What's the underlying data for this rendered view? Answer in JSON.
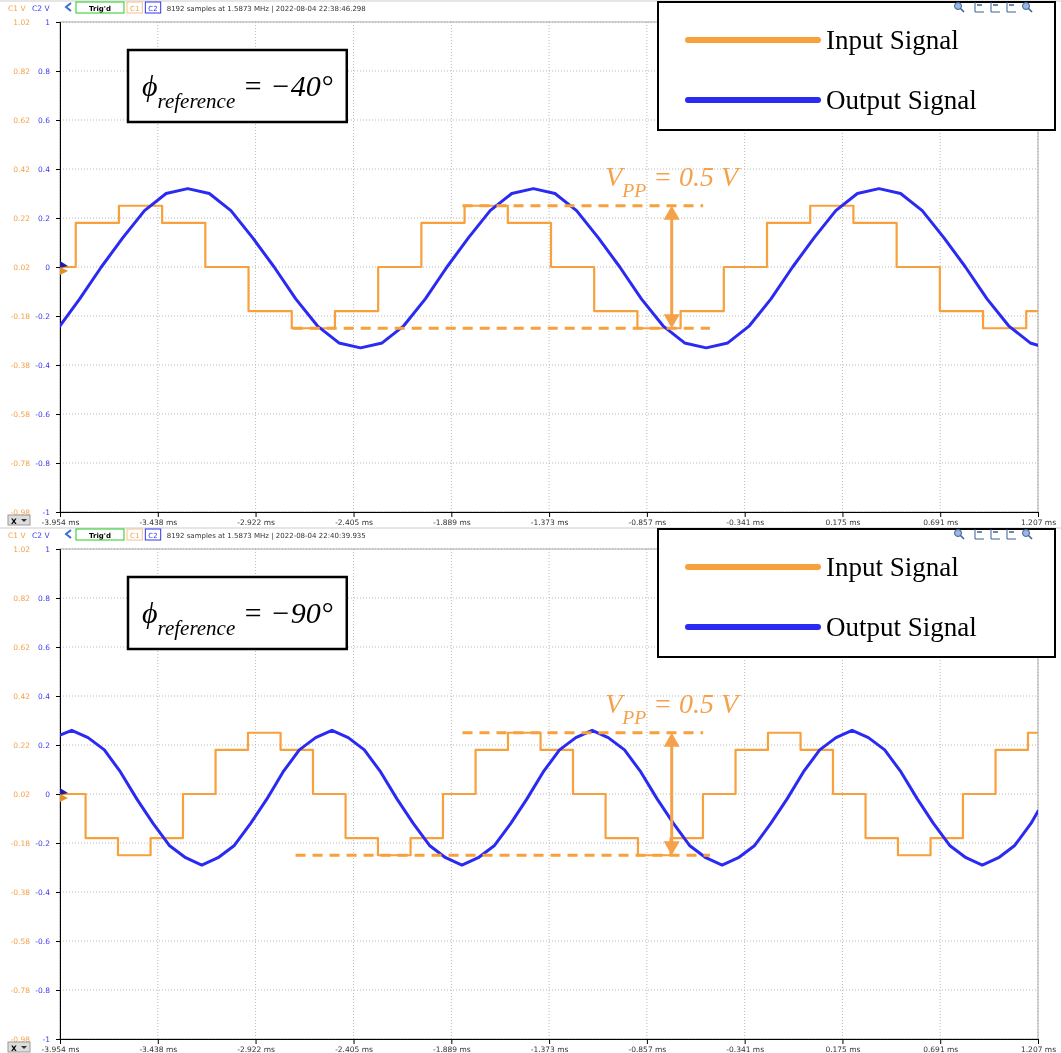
{
  "chart_data": [
    {
      "type": "line",
      "ylabel": "C2 V",
      "y2label": "C1 V",
      "annotations": [
        "ϕ$_{reference}$ = −40°",
        {
          "text": "V$_{PP}$ = 0.5 V",
          "x": -0.726,
          "y": 0.27
        },
        "Trig'd",
        "C1",
        "C2",
        "8192 samples at 1.5873 MHz | 2022-08-04 22:38:46.298",
        "X"
      ],
      "xlim": [
        -3.954,
        1.207
      ],
      "xticks": [
        {
          "value": -3.954,
          "label": "-3.954 ms"
        },
        {
          "value": -3.438,
          "label": "-3.438 ms"
        },
        {
          "value": -2.922,
          "label": "-2.922 ms"
        },
        {
          "value": -2.405,
          "label": "-2.405 ms"
        },
        {
          "value": -1.889,
          "label": "-1.889 ms"
        },
        {
          "value": -1.373,
          "label": "-1.373 ms"
        },
        {
          "value": -0.857,
          "label": "-0.857 ms"
        },
        {
          "value": -0.341,
          "label": "-0.341 ms"
        },
        {
          "value": 0.175,
          "label": "0.175 ms"
        },
        {
          "value": 0.691,
          "label": "0.691 ms"
        },
        {
          "value": 1.207,
          "label": "1.207 ms"
        }
      ],
      "ylim": [
        -1,
        1
      ],
      "yticks": [
        1,
        0.8,
        0.6,
        0.4,
        0.2,
        0,
        -0.2,
        -0.4,
        -0.6,
        -0.8,
        -1
      ],
      "y2lim": [
        -0.98,
        1.02
      ],
      "y2ticks": [
        1.02,
        0.82,
        0.62,
        0.42,
        0.22,
        0.02,
        -0.18,
        -0.38,
        -0.58,
        -0.78,
        -0.98
      ],
      "grid": true,
      "legend": "top right",
      "series": [
        {
          "name": "Input Signal",
          "type": "step",
          "axis": "y2",
          "color": "#f7a03c",
          "x": [
            -3.954,
            -3.871,
            -3.643,
            -3.415,
            -3.187,
            -2.959,
            -2.731,
            -2.503,
            -2.275,
            -2.047,
            -1.819,
            -1.591,
            -1.363,
            -1.135,
            -0.907,
            -0.679,
            -0.451,
            -0.223,
            0.005,
            0.233,
            0.461,
            0.689,
            0.917,
            1.145,
            1.207
          ],
          "values": [
            0.02,
            0.2,
            0.27,
            0.2,
            0.02,
            -0.16,
            -0.23,
            -0.16,
            0.02,
            0.2,
            0.27,
            0.2,
            0.02,
            -0.16,
            -0.23,
            -0.16,
            0.02,
            0.2,
            0.27,
            0.2,
            0.02,
            -0.16,
            -0.23,
            -0.16,
            -0.16
          ]
        },
        {
          "name": "Output Signal",
          "color": "#2a2af2",
          "x": [
            -3.954,
            -3.85,
            -3.736,
            -3.622,
            -3.508,
            -3.394,
            -3.28,
            -3.166,
            -3.052,
            -2.938,
            -2.824,
            -2.71,
            -2.596,
            -2.482,
            -2.368,
            -2.254,
            -2.14,
            -2.026,
            -1.912,
            -1.798,
            -1.684,
            -1.57,
            -1.456,
            -1.342,
            -1.228,
            -1.114,
            -1.0,
            -0.886,
            -0.772,
            -0.658,
            -0.544,
            -0.43,
            -0.316,
            -0.202,
            -0.088,
            0.026,
            0.14,
            0.254,
            0.368,
            0.482,
            0.596,
            0.71,
            0.824,
            0.938,
            1.052,
            1.166,
            1.207
          ],
          "values": [
            -0.24,
            -0.13,
            0,
            0.12,
            0.23,
            0.3,
            0.32,
            0.3,
            0.23,
            0.12,
            0,
            -0.13,
            -0.24,
            -0.31,
            -0.33,
            -0.31,
            -0.24,
            -0.13,
            0,
            0.12,
            0.23,
            0.3,
            0.32,
            0.3,
            0.23,
            0.12,
            0,
            -0.13,
            -0.24,
            -0.31,
            -0.33,
            -0.31,
            -0.24,
            -0.13,
            0,
            0.12,
            0.23,
            0.3,
            0.32,
            0.3,
            0.23,
            0.12,
            0,
            -0.13,
            -0.24,
            -0.31,
            -0.32
          ]
        },
        {
          "type": "line",
          "axis": "y2",
          "line_style": "dashed",
          "color": "#f7a03c",
          "x": [
            -1.83,
            -0.56
          ],
          "values": [
            0.27,
            0.27
          ]
        },
        {
          "type": "line",
          "axis": "y2",
          "line_style": "dashed",
          "color": "#f7a03c",
          "x": [
            -2.726,
            -0.524
          ],
          "values": [
            -0.23,
            -0.23
          ]
        }
      ]
    },
    {
      "type": "line",
      "ylabel": "C2 V",
      "y2label": "C1 V",
      "annotations": [
        "ϕ$_{reference}$ = −90°",
        {
          "text": "V$_{PP}$ = 0.5 V",
          "x": -0.726,
          "y": 0.27
        },
        "Trig'd",
        "C1",
        "C2",
        "8192 samples at 1.5873 MHz | 2022-08-04 22:40:39.935",
        "X"
      ],
      "xlim": [
        -3.954,
        1.207
      ],
      "xticks": [
        {
          "value": -3.954,
          "label": "-3.954 ms"
        },
        {
          "value": -3.438,
          "label": "-3.438 ms"
        },
        {
          "value": -2.922,
          "label": "-2.922 ms"
        },
        {
          "value": -2.405,
          "label": "-2.405 ms"
        },
        {
          "value": -1.889,
          "label": "-1.889 ms"
        },
        {
          "value": -1.373,
          "label": "-1.373 ms"
        },
        {
          "value": -0.857,
          "label": "-0.857 ms"
        },
        {
          "value": -0.341,
          "label": "-0.341 ms"
        },
        {
          "value": 0.175,
          "label": "0.175 ms"
        },
        {
          "value": 0.691,
          "label": "0.691 ms"
        },
        {
          "value": 1.207,
          "label": "1.207 ms"
        }
      ],
      "ylim": [
        -1,
        1
      ],
      "yticks": [
        1,
        0.8,
        0.6,
        0.4,
        0.2,
        0,
        -0.2,
        -0.4,
        -0.6,
        -0.8,
        -1
      ],
      "y2lim": [
        -0.98,
        1.02
      ],
      "y2ticks": [
        1.02,
        0.82,
        0.62,
        0.42,
        0.22,
        0.02,
        -0.18,
        -0.38,
        -0.58,
        -0.78,
        -0.98
      ],
      "grid": true,
      "legend": "top right",
      "series": [
        {
          "name": "Input Signal",
          "type": "step",
          "axis": "y2",
          "color": "#f7a03c",
          "x": [
            -3.954,
            -3.819,
            -3.648,
            -3.476,
            -3.305,
            -3.133,
            -2.962,
            -2.79,
            -2.619,
            -2.447,
            -2.276,
            -2.104,
            -1.933,
            -1.761,
            -1.59,
            -1.418,
            -1.247,
            -1.075,
            -0.904,
            -0.732,
            -0.561,
            -0.389,
            -0.218,
            -0.046,
            0.125,
            0.297,
            0.468,
            0.64,
            0.811,
            0.983,
            1.154,
            1.207
          ],
          "values": [
            0.02,
            -0.16,
            -0.23,
            -0.16,
            0.02,
            0.2,
            0.27,
            0.2,
            0.02,
            -0.16,
            -0.23,
            -0.16,
            0.02,
            0.2,
            0.27,
            0.2,
            0.02,
            -0.16,
            -0.23,
            -0.16,
            0.02,
            0.2,
            0.27,
            0.2,
            0.02,
            -0.16,
            -0.23,
            -0.16,
            0.02,
            0.2,
            0.27,
            0.27
          ]
        },
        {
          "name": "Output Signal",
          "color": "#2a2af2",
          "x": [
            -3.954,
            -3.892,
            -3.806,
            -3.72,
            -3.635,
            -3.549,
            -3.463,
            -3.377,
            -3.291,
            -3.206,
            -3.12,
            -3.034,
            -2.948,
            -2.862,
            -2.777,
            -2.691,
            -2.605,
            -2.519,
            -2.433,
            -2.348,
            -2.262,
            -2.176,
            -2.09,
            -2.004,
            -1.919,
            -1.833,
            -1.747,
            -1.661,
            -1.575,
            -1.49,
            -1.404,
            -1.318,
            -1.232,
            -1.146,
            -1.061,
            -0.975,
            -0.889,
            -0.803,
            -0.717,
            -0.632,
            -0.546,
            -0.46,
            -0.374,
            -0.288,
            -0.203,
            -0.117,
            -0.031,
            0.055,
            0.141,
            0.226,
            0.312,
            0.398,
            0.484,
            0.57,
            0.655,
            0.741,
            0.827,
            0.913,
            0.999,
            1.084,
            1.17,
            1.207
          ],
          "values": [
            0.24,
            0.26,
            0.23,
            0.18,
            0.09,
            -0.02,
            -0.12,
            -0.21,
            -0.26,
            -0.29,
            -0.26,
            -0.21,
            -0.12,
            -0.02,
            0.09,
            0.18,
            0.23,
            0.26,
            0.23,
            0.18,
            0.09,
            -0.02,
            -0.12,
            -0.21,
            -0.26,
            -0.29,
            -0.26,
            -0.21,
            -0.12,
            -0.02,
            0.09,
            0.18,
            0.23,
            0.26,
            0.23,
            0.18,
            0.09,
            -0.02,
            -0.12,
            -0.21,
            -0.26,
            -0.29,
            -0.26,
            -0.21,
            -0.12,
            -0.02,
            0.09,
            0.18,
            0.23,
            0.26,
            0.23,
            0.18,
            0.09,
            -0.02,
            -0.12,
            -0.21,
            -0.26,
            -0.29,
            -0.26,
            -0.21,
            -0.12,
            -0.07
          ]
        },
        {
          "type": "line",
          "axis": "y2",
          "line_style": "dashed",
          "color": "#f7a03c",
          "x": [
            -1.83,
            -0.56
          ],
          "values": [
            0.27,
            0.27
          ]
        },
        {
          "type": "line",
          "axis": "y2",
          "line_style": "dashed",
          "color": "#f7a03c",
          "x": [
            -2.711,
            -0.524
          ],
          "values": [
            -0.23,
            -0.23
          ]
        }
      ]
    }
  ]
}
